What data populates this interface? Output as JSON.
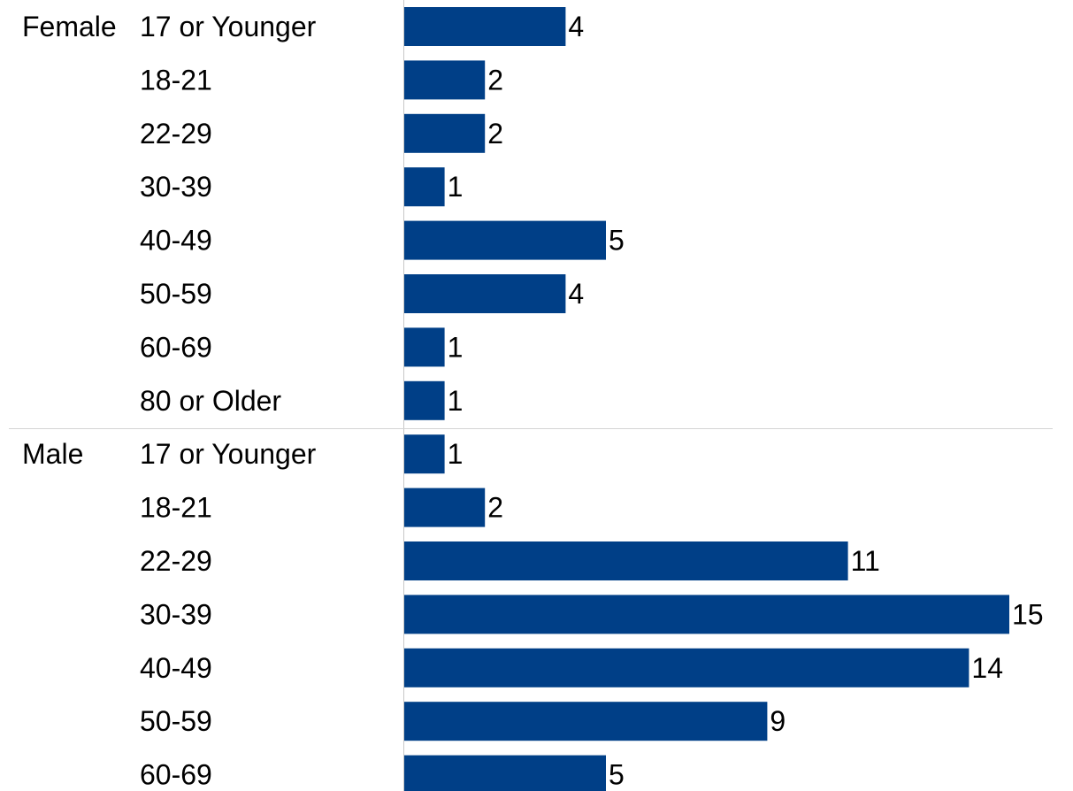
{
  "chart_data": {
    "type": "bar",
    "orientation": "horizontal",
    "bar_color": "#003f87",
    "groups": [
      {
        "name": "Female",
        "categories": [
          "17 or Younger",
          "18-21",
          "22-29",
          "30-39",
          "40-49",
          "50-59",
          "60-69",
          "80 or Older"
        ],
        "values": [
          4,
          2,
          2,
          1,
          5,
          4,
          1,
          1
        ]
      },
      {
        "name": "Male",
        "categories": [
          "17 or Younger",
          "18-21",
          "22-29",
          "30-39",
          "40-49",
          "50-59",
          "60-69"
        ],
        "values": [
          1,
          2,
          11,
          15,
          14,
          9,
          5
        ]
      }
    ],
    "xlim": [
      0,
      15
    ],
    "grid": false,
    "legend": "none",
    "data_labels": true
  }
}
